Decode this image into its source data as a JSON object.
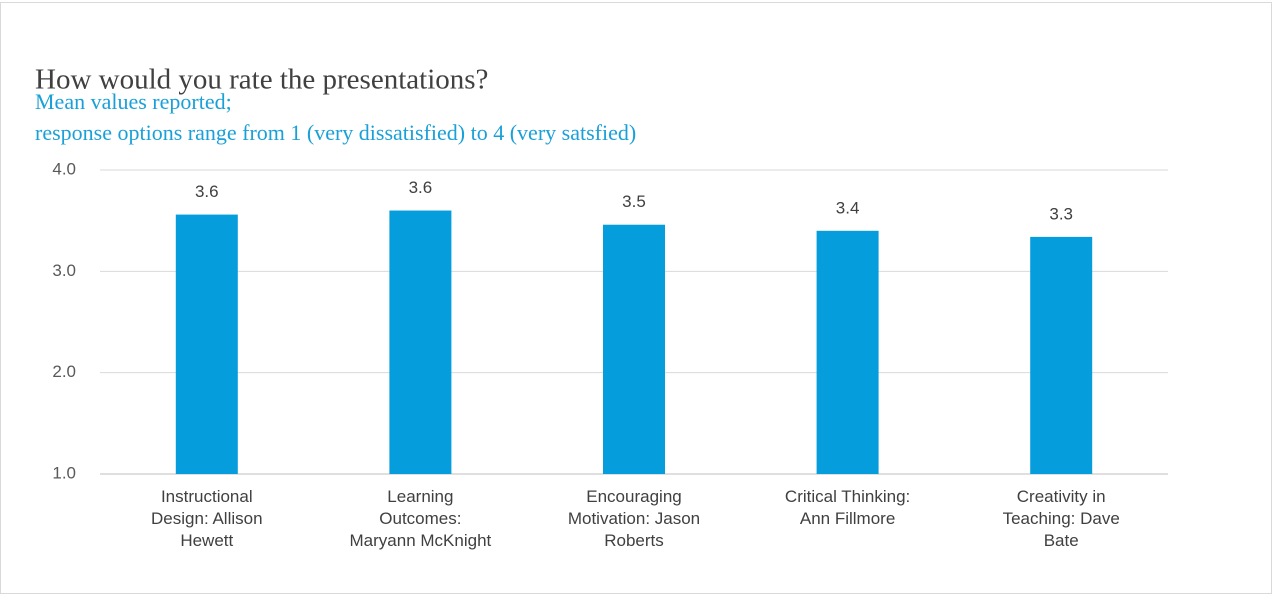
{
  "chart_data": {
    "type": "bar",
    "title": "How would you rate the presentations?",
    "subtitle": [
      "Mean values reported;",
      "response options range from 1 (very dissatisfied) to 4 (very satsfied)"
    ],
    "categories": [
      "Instructional Design: Allison Hewett",
      "Learning Outcomes: Maryann McKnight",
      "Encouraging Motivation: Jason Roberts",
      "Critical Thinking: Ann Fillmore",
      "Creativity in Teaching: Dave Bate"
    ],
    "values": [
      3.56,
      3.6,
      3.46,
      3.4,
      3.34
    ],
    "value_labels": [
      "3.6",
      "3.6",
      "3.5",
      "3.4",
      "3.3"
    ],
    "color": "#069ddc",
    "ylim": [
      1,
      4
    ],
    "yticks": [
      {
        "value": 1,
        "label": "1.0"
      },
      {
        "value": 2,
        "label": "2.0"
      },
      {
        "value": 3,
        "label": "3.0"
      },
      {
        "value": 4,
        "label": "4.0"
      }
    ],
    "grid": true
  }
}
